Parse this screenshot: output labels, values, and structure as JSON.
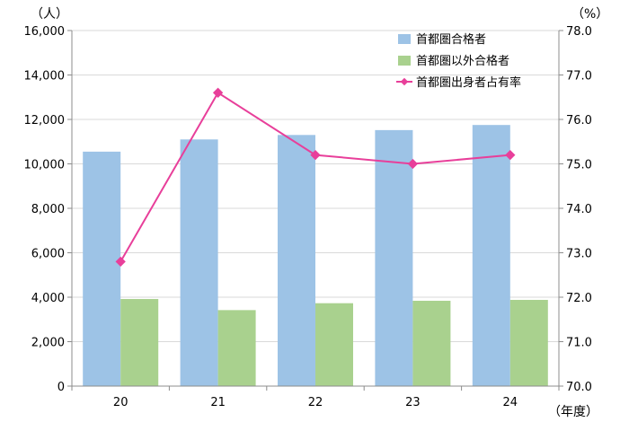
{
  "chart_data": {
    "type": "bar",
    "categories": [
      "20",
      "21",
      "22",
      "23",
      "24"
    ],
    "series": [
      {
        "name": "首都圏合格者",
        "type": "bar",
        "axis": "left",
        "color": "#9dc3e6",
        "values": [
          10550,
          11100,
          11300,
          11520,
          11750
        ]
      },
      {
        "name": "首都圏以外合格者",
        "type": "bar",
        "axis": "left",
        "color": "#a9d18e",
        "values": [
          3920,
          3420,
          3730,
          3840,
          3880
        ]
      },
      {
        "name": "首都圏出身者占有率",
        "type": "line",
        "axis": "right",
        "color": "#e83f9a",
        "values": [
          72.8,
          76.6,
          75.2,
          75.0,
          75.2
        ]
      }
    ],
    "y_left": {
      "unit": "（人）",
      "min": 0,
      "max": 16000,
      "step": 2000,
      "ticks": [
        "0",
        "2,000",
        "4,000",
        "6,000",
        "8,000",
        "10,000",
        "12,000",
        "14,000",
        "16,000"
      ]
    },
    "y_right": {
      "unit": "（%）",
      "min": 70.0,
      "max": 78.0,
      "step": 1.0,
      "ticks": [
        "70.0",
        "71.0",
        "72.0",
        "73.0",
        "74.0",
        "75.0",
        "76.0",
        "77.0",
        "78.0"
      ]
    },
    "x_unit": "（年度）",
    "grid": true,
    "legend_position": "top-right"
  }
}
